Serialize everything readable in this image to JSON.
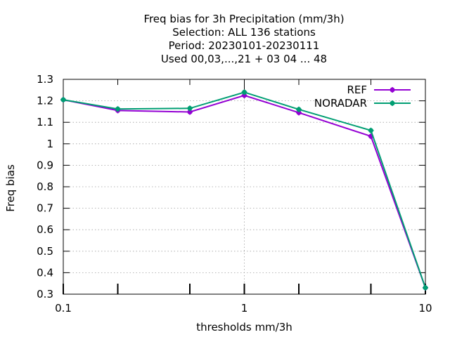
{
  "chart_data": {
    "type": "line",
    "title_lines": [
      "Freq bias  for 3h Precipitation (mm/3h)",
      "Selection: ALL    136 stations",
      "Period: 20230101-20230111",
      "Used  00,03,...,21  + 03 04 ... 48"
    ],
    "xlabel": "thresholds mm/3h",
    "ylabel": "Freq bias",
    "xscale": "log",
    "xlim": [
      0.1,
      10
    ],
    "ylim": [
      0.3,
      1.3
    ],
    "x_tick_labels": [
      {
        "value": 0.1,
        "label": "0.1"
      },
      {
        "value": 1,
        "label": "1"
      },
      {
        "value": 10,
        "label": "10"
      }
    ],
    "x_minor_ticks": [
      0.2,
      0.5,
      2,
      5
    ],
    "y_ticks": [
      0.3,
      0.4,
      0.5,
      0.6,
      0.7,
      0.8,
      0.9,
      1.0,
      1.1,
      1.2,
      1.3
    ],
    "y_tick_labels": [
      "0.3",
      "0.4",
      "0.5",
      "0.6",
      "0.7",
      "0.8",
      "0.9",
      "1",
      "1.1",
      "1.2",
      "1.3"
    ],
    "grid": true,
    "legend_position": "top-right",
    "x": [
      0.1,
      0.2,
      0.5,
      1,
      2,
      5,
      10
    ],
    "series": [
      {
        "name": "REF",
        "color": "#9400d3",
        "values": [
          1.205,
          1.155,
          1.148,
          1.225,
          1.145,
          1.035,
          0.33
        ]
      },
      {
        "name": "NORADAR",
        "color": "#009e73",
        "values": [
          1.205,
          1.162,
          1.165,
          1.24,
          1.16,
          1.062,
          0.33
        ]
      }
    ]
  }
}
